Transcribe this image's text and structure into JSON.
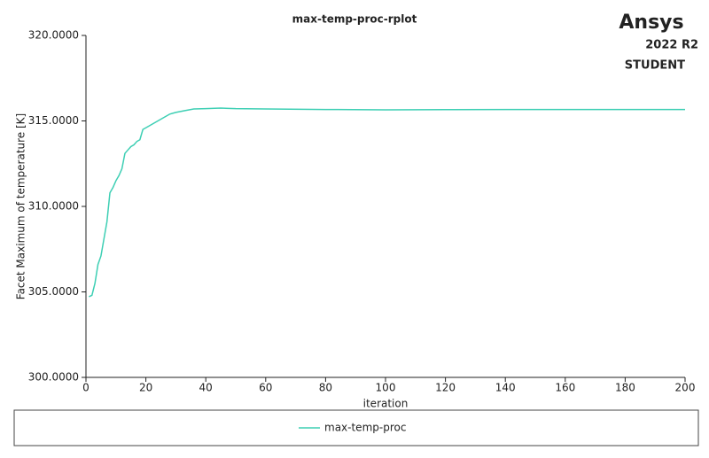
{
  "chart_data": {
    "type": "line",
    "title": "max-temp-proc-rplot",
    "brand": {
      "name": "Ansys",
      "version": "2022 R2",
      "edition": "STUDENT"
    },
    "x_label": "iteration",
    "y_label": "Facet Maximum of temperature [K]",
    "x": [
      1,
      2,
      3,
      4,
      5,
      6,
      7,
      8,
      9,
      10,
      11,
      12,
      13,
      14,
      15,
      16,
      17,
      18,
      19,
      20,
      22,
      24,
      26,
      28,
      30,
      33,
      36,
      40,
      45,
      50,
      60,
      80,
      100,
      120,
      140,
      160,
      180,
      200
    ],
    "series": [
      {
        "name": "max-temp-proc",
        "color": "#3ecfb4",
        "values": [
          304.72,
          304.8,
          305.5,
          306.6,
          307.1,
          308.1,
          309.1,
          310.8,
          311.1,
          311.5,
          311.8,
          312.2,
          313.1,
          313.3,
          313.5,
          313.6,
          313.8,
          313.9,
          314.5,
          314.6,
          314.8,
          315.0,
          315.2,
          315.4,
          315.5,
          315.6,
          315.7,
          315.72,
          315.75,
          315.72,
          315.7,
          315.67,
          315.65,
          315.66,
          315.67,
          315.67,
          315.67,
          315.67
        ]
      }
    ],
    "xlim": [
      0,
      200
    ],
    "xticks": [
      0,
      20,
      40,
      60,
      80,
      100,
      120,
      140,
      160,
      180,
      200
    ],
    "ylim": [
      300,
      320
    ],
    "yticks": [
      {
        "value": 300,
        "label": "300.0000"
      },
      {
        "value": 305,
        "label": "305.0000"
      },
      {
        "value": 310,
        "label": "310.0000"
      },
      {
        "value": 315,
        "label": "315.0000"
      },
      {
        "value": 320,
        "label": "320.0000"
      }
    ],
    "grid": false,
    "legend": "bottom"
  }
}
